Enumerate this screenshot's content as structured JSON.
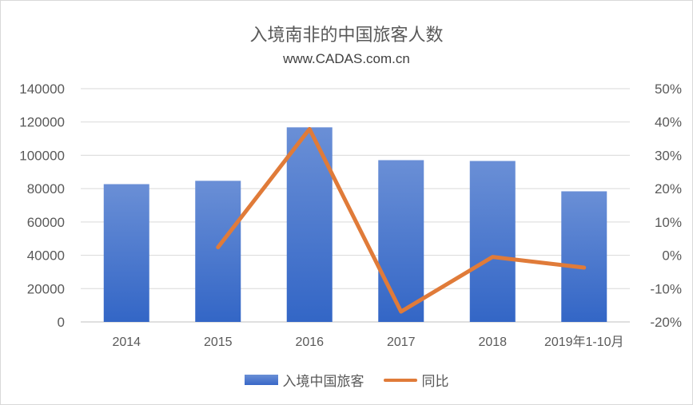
{
  "chart_data": {
    "type": "bar",
    "title": "入境南非的中国旅客人数",
    "subtitle": "www.CADAS.com.cn",
    "categories": [
      "2014",
      "2015",
      "2016",
      "2017",
      "2018",
      "2019年1-10月"
    ],
    "series": [
      {
        "name": "入境中国旅客",
        "type": "bar",
        "axis": "left",
        "values": [
          82700,
          84700,
          116800,
          97100,
          96600,
          78400
        ],
        "color": "#4472c4"
      },
      {
        "name": "同比",
        "type": "line",
        "axis": "right",
        "values": [
          null,
          2.4,
          37.9,
          -16.9,
          -0.5,
          -3.7
        ],
        "color": "#e07b39"
      }
    ],
    "y_left": {
      "min": 0,
      "max": 140000,
      "step": 20000,
      "ticks": [
        "0",
        "20000",
        "40000",
        "60000",
        "80000",
        "100000",
        "120000",
        "140000"
      ]
    },
    "y_right": {
      "min": -20,
      "max": 50,
      "step": 10,
      "ticks": [
        "-20%",
        "-10%",
        "0%",
        "10%",
        "20%",
        "30%",
        "40%",
        "50%"
      ]
    },
    "grid": true,
    "legend_position": "bottom"
  }
}
